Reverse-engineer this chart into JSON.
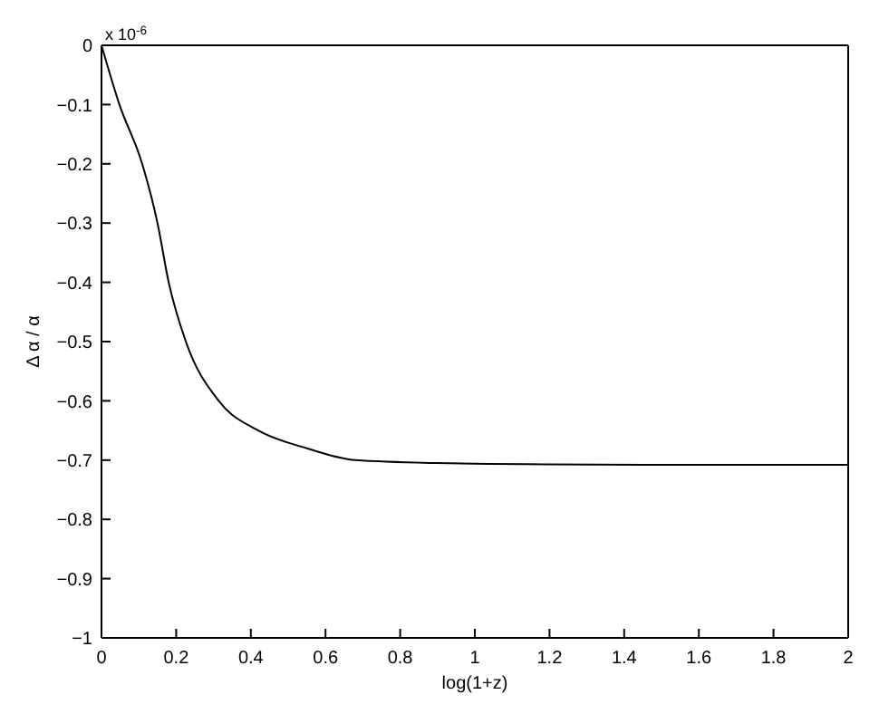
{
  "chart_data": {
    "type": "line",
    "xlabel": "log(1+z)",
    "ylabel": "Δ α / α",
    "annotations": [
      "x 10$^{-6}$"
    ],
    "x": [
      0,
      0.048,
      0.109,
      0.15,
      0.18,
      0.226,
      0.314,
      0.42,
      0.55,
      0.68,
      0.9,
      1.2,
      1.6,
      2
    ],
    "series": [
      {
        "color": "#000000",
        "values": [
          0,
          -0.1,
          -0.2,
          -0.3,
          -0.4,
          -0.5,
          -0.6,
          -0.65,
          -0.68,
          -0.7,
          -0.705,
          -0.707,
          -0.708,
          -0.708
        ]
      }
    ],
    "xlim": [
      0,
      2
    ],
    "xticks": [
      0,
      0.2,
      0.4,
      0.6,
      0.8,
      1,
      1.2,
      1.4,
      1.6,
      1.8,
      2
    ],
    "ylim": [
      -1,
      0
    ],
    "yticks": [
      {
        "value": -1,
        "label": "−1"
      },
      {
        "value": -0.9,
        "label": "−0.9"
      },
      {
        "value": -0.8,
        "label": "−0.8"
      },
      {
        "value": -0.7,
        "label": "−0.7"
      },
      {
        "value": -0.6,
        "label": "−0.6"
      },
      {
        "value": -0.5,
        "label": "−0.5"
      },
      {
        "value": -0.4,
        "label": "−0.4"
      },
      {
        "value": -0.3,
        "label": "−0.3"
      },
      {
        "value": -0.2,
        "label": "−0.2"
      },
      {
        "value": -0.1,
        "label": "−0.1"
      },
      0
    ],
    "grid": false,
    "marker": "none",
    "line_style": "solid"
  }
}
